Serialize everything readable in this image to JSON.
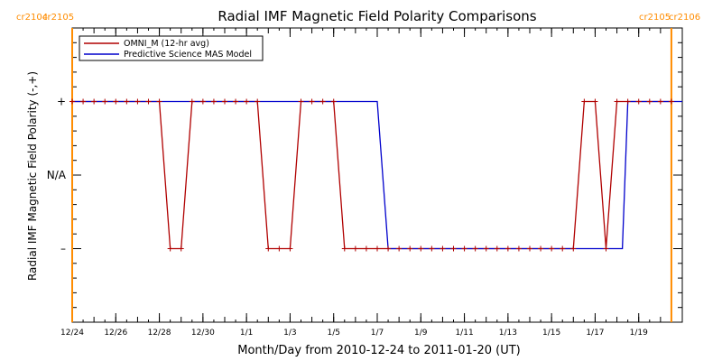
{
  "chart_data": {
    "type": "line",
    "title": "Radial IMF Magnetic Field Polarity Comparisons",
    "xlabel": "Month/Day from 2010-12-24 to 2011-01-20 (UT)",
    "ylabel": "Radial IMF Magnetic Field Polarity (-,+)",
    "x_range": [
      "2010-12-24T00:00",
      "2011-01-21T00:00"
    ],
    "x_ticks": [
      "12/24",
      "12/26",
      "12/28",
      "12/30",
      "1/1",
      "1/3",
      "1/5",
      "1/7",
      "1/9",
      "1/11",
      "1/13",
      "1/15",
      "1/17",
      "1/19"
    ],
    "x_tick_dates": [
      "2010-12-24",
      "2010-12-26",
      "2010-12-28",
      "2010-12-30",
      "2011-01-01",
      "2011-01-03",
      "2011-01-05",
      "2011-01-07",
      "2011-01-09",
      "2011-01-11",
      "2011-01-13",
      "2011-01-15",
      "2011-01-17",
      "2011-01-19"
    ],
    "y_categories": [
      "-",
      "N/A",
      "+"
    ],
    "y_tick_labels": [
      "+",
      "N/A",
      "–"
    ],
    "y_values": [
      -1,
      0,
      1
    ],
    "ylim": [
      -2,
      2
    ],
    "legend": {
      "placement": "top-left",
      "entries": [
        {
          "label": "OMNI_M (12-hr avg)",
          "color": "#b00000"
        },
        {
          "label": "Predictive Science MAS Model",
          "color": "#0000cc"
        }
      ]
    },
    "carrington_markers": [
      {
        "date": "2010-12-24T00:00",
        "left_label": "cr2104",
        "right_label": "cr2105",
        "color": "#ff8c00"
      },
      {
        "date": "2011-01-20T12:00",
        "left_label": "cr2105",
        "right_label": "cr2106",
        "color": "#ff8c00"
      }
    ],
    "series": [
      {
        "name": "OMNI_M (12-hr avg)",
        "color": "#b00000",
        "marker": "+",
        "x": [
          "2010-12-24T00:00",
          "2010-12-24T12:00",
          "2010-12-25T00:00",
          "2010-12-25T12:00",
          "2010-12-26T00:00",
          "2010-12-26T12:00",
          "2010-12-27T00:00",
          "2010-12-27T12:00",
          "2010-12-28T00:00",
          "2010-12-28T12:00",
          "2010-12-29T00:00",
          "2010-12-29T12:00",
          "2010-12-30T00:00",
          "2010-12-30T12:00",
          "2010-12-31T00:00",
          "2010-12-31T12:00",
          "2011-01-01T00:00",
          "2011-01-01T12:00",
          "2011-01-02T00:00",
          "2011-01-02T12:00",
          "2011-01-03T00:00",
          "2011-01-03T12:00",
          "2011-01-04T00:00",
          "2011-01-04T12:00",
          "2011-01-05T00:00",
          "2011-01-05T12:00",
          "2011-01-06T00:00",
          "2011-01-06T12:00",
          "2011-01-07T00:00",
          "2011-01-07T12:00",
          "2011-01-08T00:00",
          "2011-01-08T12:00",
          "2011-01-09T00:00",
          "2011-01-09T12:00",
          "2011-01-10T00:00",
          "2011-01-10T12:00",
          "2011-01-11T00:00",
          "2011-01-11T12:00",
          "2011-01-12T00:00",
          "2011-01-12T12:00",
          "2011-01-13T00:00",
          "2011-01-13T12:00",
          "2011-01-14T00:00",
          "2011-01-14T12:00",
          "2011-01-15T00:00",
          "2011-01-15T12:00",
          "2011-01-16T00:00",
          "2011-01-16T12:00",
          "2011-01-17T00:00",
          "2011-01-17T12:00",
          "2011-01-18T00:00",
          "2011-01-18T12:00",
          "2011-01-19T00:00",
          "2011-01-19T12:00",
          "2011-01-20T00:00",
          "2011-01-20T12:00"
        ],
        "y": [
          1,
          1,
          1,
          1,
          1,
          1,
          1,
          1,
          1,
          -1,
          -1,
          1,
          1,
          1,
          1,
          1,
          1,
          1,
          -1,
          -1,
          -1,
          1,
          1,
          1,
          1,
          -1,
          -1,
          -1,
          -1,
          -1,
          -1,
          -1,
          -1,
          -1,
          -1,
          -1,
          -1,
          -1,
          -1,
          -1,
          -1,
          -1,
          -1,
          -1,
          -1,
          -1,
          -1,
          1,
          1,
          -1,
          1,
          1,
          1,
          1,
          1,
          1
        ]
      },
      {
        "name": "Predictive Science MAS Model",
        "color": "#0000cc",
        "x": [
          "2010-12-24T00:00",
          "2011-01-07T00:00",
          "2011-01-07T12:00",
          "2011-01-18T06:00",
          "2011-01-18T12:00",
          "2011-01-21T00:00"
        ],
        "y": [
          1,
          1,
          -1,
          -1,
          1,
          1
        ]
      }
    ]
  }
}
